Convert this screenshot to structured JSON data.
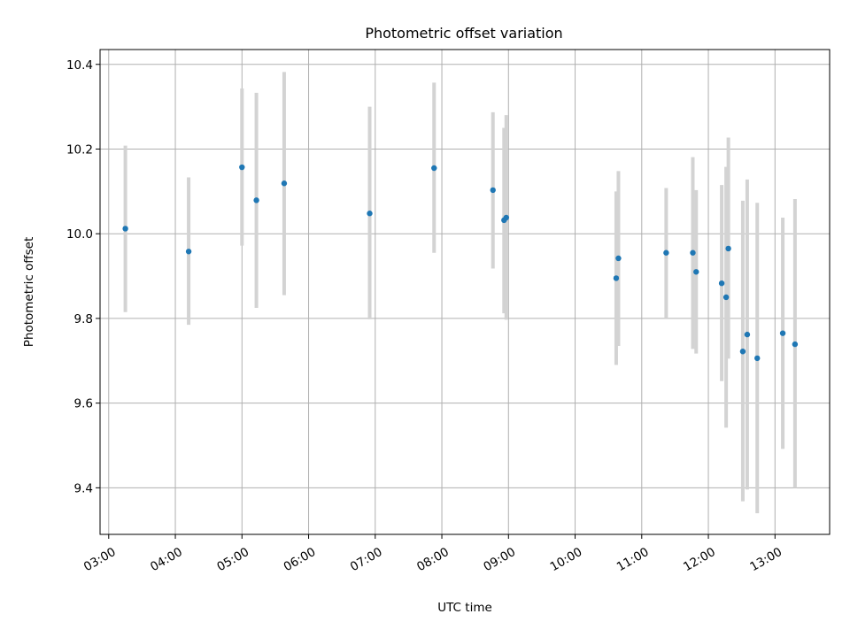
{
  "chart_data": {
    "type": "scatter",
    "title": "Photometric offset variation",
    "xlabel": "UTC time",
    "ylabel": "Photometric offset",
    "x_axis": {
      "unit": "hours (UTC)",
      "range": [
        2.87,
        13.82
      ],
      "ticks": [
        3,
        4,
        5,
        6,
        7,
        8,
        9,
        10,
        11,
        12,
        13
      ],
      "tick_labels": [
        "03:00",
        "04:00",
        "05:00",
        "06:00",
        "07:00",
        "08:00",
        "09:00",
        "10:00",
        "11:00",
        "12:00",
        "13:00"
      ]
    },
    "y_axis": {
      "range": [
        9.29,
        10.435
      ],
      "ticks": [
        9.4,
        9.6,
        9.8,
        10.0,
        10.2,
        10.4
      ],
      "tick_labels": [
        "9.4",
        "9.6",
        "9.8",
        "10.0",
        "10.2",
        "10.4"
      ]
    },
    "grid": true,
    "colors": {
      "points": "#1f77b4",
      "error_bars": "#d3d3d3",
      "grid": "#b0b0b0"
    },
    "points": [
      {
        "time": "03:15",
        "y": 10.012,
        "err_lo": 9.815,
        "err_hi": 10.208
      },
      {
        "time": "04:12",
        "y": 9.958,
        "err_lo": 9.785,
        "err_hi": 10.133
      },
      {
        "time": "05:00",
        "y": 10.157,
        "err_lo": 9.972,
        "err_hi": 10.343
      },
      {
        "time": "05:13",
        "y": 10.079,
        "err_lo": 9.825,
        "err_hi": 10.333
      },
      {
        "time": "05:38",
        "y": 10.119,
        "err_lo": 9.855,
        "err_hi": 10.382
      },
      {
        "time": "06:55",
        "y": 10.048,
        "err_lo": 9.798,
        "err_hi": 10.3
      },
      {
        "time": "07:53",
        "y": 10.155,
        "err_lo": 9.955,
        "err_hi": 10.357
      },
      {
        "time": "08:46",
        "y": 10.103,
        "err_lo": 9.918,
        "err_hi": 10.287
      },
      {
        "time": "08:56",
        "y": 10.032,
        "err_lo": 9.812,
        "err_hi": 10.25
      },
      {
        "time": "08:58",
        "y": 10.038,
        "err_lo": 9.797,
        "err_hi": 10.28
      },
      {
        "time": "10:37",
        "y": 9.895,
        "err_lo": 9.69,
        "err_hi": 10.1
      },
      {
        "time": "10:39",
        "y": 9.942,
        "err_lo": 9.735,
        "err_hi": 10.148
      },
      {
        "time": "11:22",
        "y": 9.955,
        "err_lo": 9.8,
        "err_hi": 10.108
      },
      {
        "time": "11:46",
        "y": 9.955,
        "err_lo": 9.728,
        "err_hi": 10.181
      },
      {
        "time": "11:49",
        "y": 9.91,
        "err_lo": 9.717,
        "err_hi": 10.103
      },
      {
        "time": "12:12",
        "y": 9.883,
        "err_lo": 9.652,
        "err_hi": 10.115
      },
      {
        "time": "12:16",
        "y": 9.85,
        "err_lo": 9.542,
        "err_hi": 10.158
      },
      {
        "time": "12:18",
        "y": 9.965,
        "err_lo": 9.705,
        "err_hi": 10.227
      },
      {
        "time": "12:31",
        "y": 9.722,
        "err_lo": 9.368,
        "err_hi": 10.078
      },
      {
        "time": "12:35",
        "y": 9.762,
        "err_lo": 9.396,
        "err_hi": 10.128
      },
      {
        "time": "12:44",
        "y": 9.706,
        "err_lo": 9.34,
        "err_hi": 10.073
      },
      {
        "time": "13:07",
        "y": 9.765,
        "err_lo": 9.492,
        "err_hi": 10.038
      },
      {
        "time": "13:18",
        "y": 9.739,
        "err_lo": 9.4,
        "err_hi": 10.082
      }
    ]
  }
}
